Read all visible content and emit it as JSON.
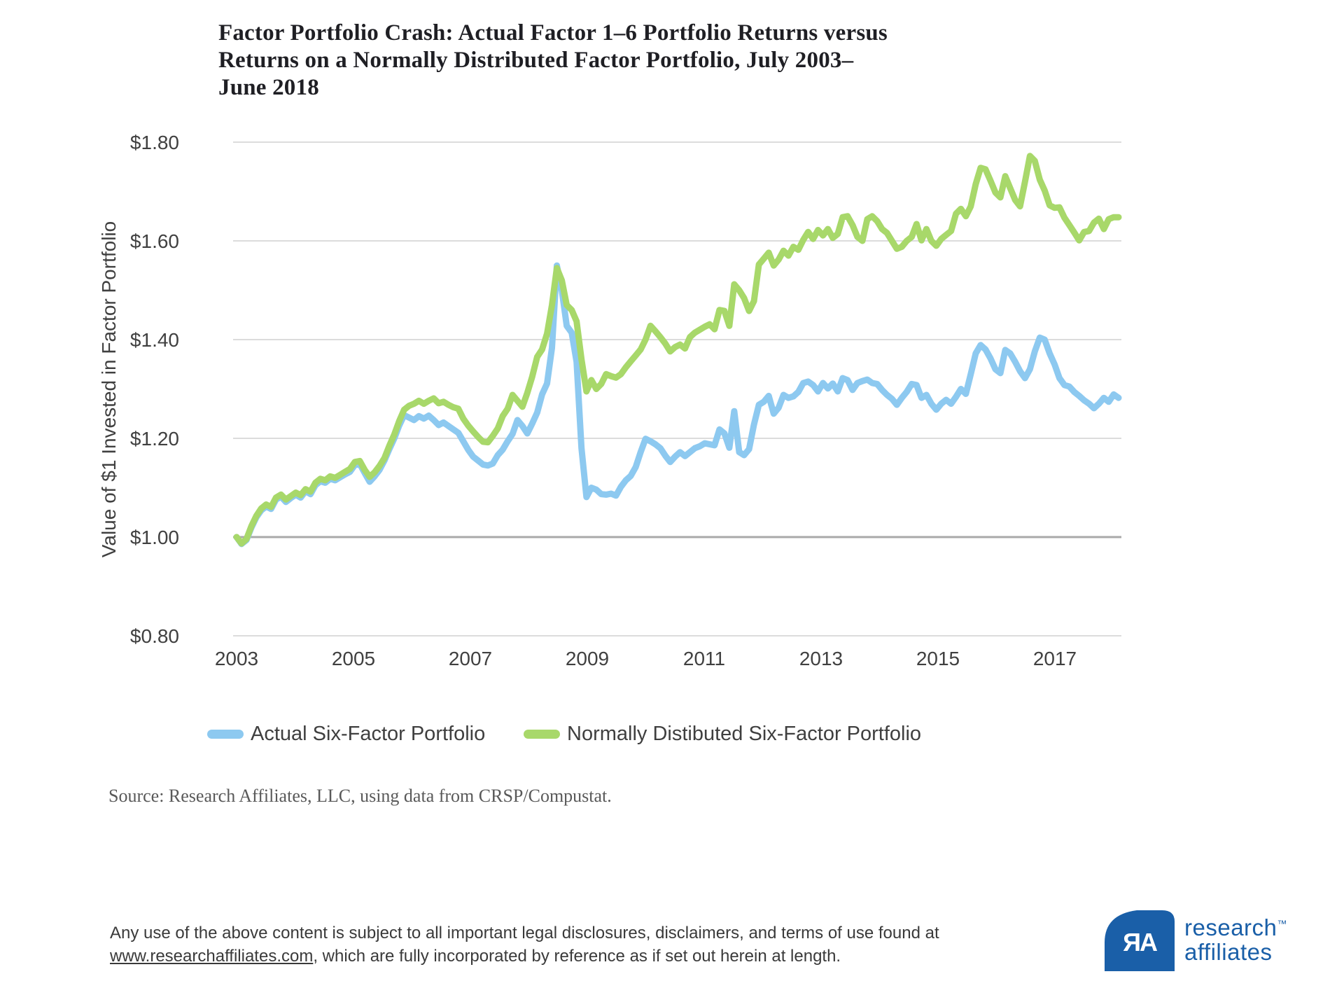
{
  "title": {
    "line1": "Factor Portfolio Crash: Actual Factor 1–6 Portfolio Returns versus",
    "line2": "Returns on a Normally Distributed Factor Portfolio, July 2003–",
    "line3": "June 2018"
  },
  "y_axis": {
    "label": "Value of $1 Invested in Factor Portfolio",
    "tick_values": [
      0.8,
      1.0,
      1.2,
      1.4,
      1.6,
      1.8
    ],
    "tick_labels": [
      "$0.80",
      "$1.00",
      "$1.20",
      "$1.40",
      "$1.60",
      "$1.80"
    ]
  },
  "x_axis": {
    "tick_years": [
      2003,
      2005,
      2007,
      2009,
      2011,
      2013,
      2015,
      2017
    ]
  },
  "legend": {
    "items": [
      {
        "label": "Actual Six-Factor Portfolio",
        "color": "#8dc9f0"
      },
      {
        "label": "Normally Distibuted Six-Factor Portfolio",
        "color": "#a8d86a"
      }
    ]
  },
  "source": "Source: Research Affiliates, LLC, using data from CRSP/Compustat.",
  "footer": {
    "line1": "Any use of the above content is subject to all important legal disclosures, disclaimers, and terms of use found at",
    "link": "www.researchaffiliates.com",
    "line2_rest": ", which are fully incorporated by reference as if set out herein at length."
  },
  "logo": {
    "monogram": "ЯA",
    "name_line1": "research",
    "tm": "™",
    "name_line2": "affiliates",
    "color": "#1a5fa8"
  },
  "chart_data": {
    "type": "line",
    "title": "Factor Portfolio Crash: Actual Factor 1–6 Portfolio Returns versus Returns on a Normally Distributed Factor Portfolio, July 2003–June 2018",
    "ylabel": "Value of $1 Invested in Factor Portfolio",
    "xlabel": "",
    "x_start": "2003-07",
    "x_end": "2018-06",
    "x_frequency": "monthly",
    "ylim": [
      0.8,
      1.85
    ],
    "y_ticks": [
      0.8,
      1.0,
      1.2,
      1.4,
      1.6,
      1.8
    ],
    "x_tick_years": [
      2003,
      2005,
      2007,
      2009,
      2011,
      2013,
      2015,
      2017
    ],
    "grid": "horizontal",
    "legend_position": "bottom",
    "gridline_color": "#dcdcdc",
    "baseline_gridline_value": 1.0,
    "baseline_gridline_color": "#a9a9a9",
    "series": [
      {
        "name": "Actual Six-Factor Portfolio",
        "color": "#8dc9f0",
        "values": [
          1.0,
          0.986,
          0.994,
          1.019,
          1.04,
          1.054,
          1.062,
          1.057,
          1.076,
          1.082,
          1.071,
          1.079,
          1.086,
          1.08,
          1.093,
          1.087,
          1.105,
          1.113,
          1.11,
          1.118,
          1.115,
          1.121,
          1.127,
          1.132,
          1.146,
          1.148,
          1.13,
          1.112,
          1.123,
          1.136,
          1.155,
          1.178,
          1.2,
          1.226,
          1.247,
          1.242,
          1.237,
          1.245,
          1.24,
          1.246,
          1.237,
          1.227,
          1.232,
          1.225,
          1.218,
          1.211,
          1.194,
          1.177,
          1.163,
          1.155,
          1.147,
          1.145,
          1.149,
          1.166,
          1.177,
          1.194,
          1.209,
          1.237,
          1.225,
          1.21,
          1.23,
          1.252,
          1.289,
          1.311,
          1.383,
          1.55,
          1.5,
          1.428,
          1.414,
          1.355,
          1.18,
          1.081,
          1.1,
          1.096,
          1.087,
          1.086,
          1.088,
          1.084,
          1.102,
          1.115,
          1.124,
          1.142,
          1.172,
          1.199,
          1.194,
          1.188,
          1.18,
          1.165,
          1.152,
          1.163,
          1.172,
          1.164,
          1.172,
          1.18,
          1.184,
          1.19,
          1.188,
          1.186,
          1.218,
          1.21,
          1.181,
          1.255,
          1.172,
          1.166,
          1.178,
          1.228,
          1.268,
          1.274,
          1.286,
          1.25,
          1.262,
          1.288,
          1.282,
          1.285,
          1.294,
          1.312,
          1.315,
          1.308,
          1.295,
          1.312,
          1.301,
          1.311,
          1.295,
          1.322,
          1.318,
          1.298,
          1.312,
          1.316,
          1.319,
          1.312,
          1.31,
          1.298,
          1.288,
          1.28,
          1.268,
          1.282,
          1.294,
          1.31,
          1.308,
          1.282,
          1.288,
          1.27,
          1.258,
          1.27,
          1.278,
          1.27,
          1.284,
          1.3,
          1.29,
          1.33,
          1.372,
          1.389,
          1.38,
          1.362,
          1.34,
          1.332,
          1.379,
          1.372,
          1.355,
          1.336,
          1.322,
          1.34,
          1.376,
          1.404,
          1.4,
          1.372,
          1.35,
          1.322,
          1.308,
          1.305,
          1.294,
          1.286,
          1.277,
          1.27,
          1.261,
          1.27,
          1.282,
          1.274,
          1.289,
          1.282
        ]
      },
      {
        "name": "Normally Distibuted Six-Factor Portfolio",
        "color": "#a8d86a",
        "values": [
          1.0,
          0.987,
          0.996,
          1.022,
          1.043,
          1.058,
          1.066,
          1.061,
          1.08,
          1.086,
          1.076,
          1.083,
          1.09,
          1.085,
          1.097,
          1.092,
          1.11,
          1.118,
          1.115,
          1.123,
          1.12,
          1.126,
          1.132,
          1.138,
          1.152,
          1.154,
          1.136,
          1.122,
          1.131,
          1.144,
          1.16,
          1.185,
          1.208,
          1.235,
          1.258,
          1.266,
          1.27,
          1.276,
          1.27,
          1.276,
          1.281,
          1.271,
          1.274,
          1.268,
          1.263,
          1.26,
          1.24,
          1.226,
          1.214,
          1.203,
          1.193,
          1.192,
          1.205,
          1.22,
          1.245,
          1.26,
          1.288,
          1.276,
          1.264,
          1.292,
          1.325,
          1.365,
          1.38,
          1.412,
          1.47,
          1.545,
          1.52,
          1.47,
          1.46,
          1.437,
          1.36,
          1.295,
          1.318,
          1.3,
          1.31,
          1.33,
          1.326,
          1.323,
          1.33,
          1.344,
          1.356,
          1.368,
          1.38,
          1.4,
          1.428,
          1.417,
          1.405,
          1.392,
          1.376,
          1.385,
          1.39,
          1.382,
          1.405,
          1.414,
          1.42,
          1.426,
          1.431,
          1.421,
          1.46,
          1.458,
          1.428,
          1.512,
          1.5,
          1.484,
          1.458,
          1.478,
          1.552,
          1.564,
          1.576,
          1.55,
          1.562,
          1.58,
          1.57,
          1.588,
          1.582,
          1.602,
          1.618,
          1.604,
          1.622,
          1.611,
          1.624,
          1.606,
          1.614,
          1.648,
          1.65,
          1.632,
          1.608,
          1.6,
          1.644,
          1.65,
          1.64,
          1.624,
          1.616,
          1.6,
          1.584,
          1.588,
          1.6,
          1.608,
          1.634,
          1.601,
          1.624,
          1.6,
          1.59,
          1.604,
          1.612,
          1.62,
          1.655,
          1.665,
          1.65,
          1.67,
          1.715,
          1.748,
          1.745,
          1.722,
          1.698,
          1.688,
          1.731,
          1.707,
          1.683,
          1.67,
          1.72,
          1.772,
          1.762,
          1.724,
          1.702,
          1.672,
          1.667,
          1.668,
          1.647,
          1.632,
          1.617,
          1.601,
          1.618,
          1.62,
          1.637,
          1.645,
          1.624,
          1.644,
          1.648,
          1.648
        ]
      }
    ]
  }
}
